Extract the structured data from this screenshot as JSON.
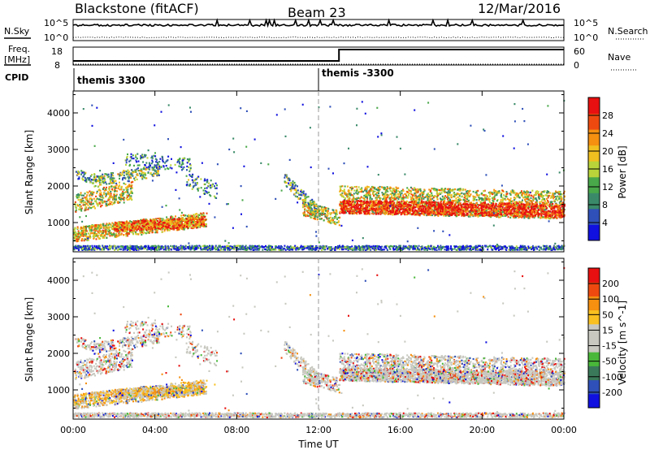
{
  "header": {
    "station": "Blackstone (fitACF)",
    "beam": "Beam 23",
    "date": "12/Mar/2016"
  },
  "side_labels": {
    "nsky": "N.Sky",
    "nsearch": "N.Search",
    "freq_line1": "Freq.",
    "freq_line2": "[MHz]",
    "nave": "Nave",
    "cpid": "CPID"
  },
  "noise_ticks": {
    "left_top": "10^5",
    "left_bottom": "10^0",
    "right_top": "10^5",
    "right_bottom": "10^0"
  },
  "freq_ticks": {
    "left_top": "18",
    "left_bottom": "8",
    "right_top": "60",
    "right_bottom": "0"
  },
  "cpid_segments": [
    {
      "label": "themis 3300",
      "start": "00:00"
    },
    {
      "label": "themis -3300",
      "start": "12:00"
    }
  ],
  "colors": {
    "power_scale": [
      "#1010e0",
      "#2f50b8",
      "#3a8a6a",
      "#49a84a",
      "#b8d43a",
      "#f0c020",
      "#f59010",
      "#ee4a10",
      "#e81010"
    ],
    "velocity_scale": [
      "#e81010",
      "#ee4a10",
      "#f59010",
      "#f8c020",
      "#c8c8c0",
      "#c8c8c0",
      "#49b83a",
      "#3a7a5a",
      "#2f50b8",
      "#1010e0"
    ]
  },
  "chart_data": [
    {
      "type": "heatmap",
      "panel": "power",
      "x_ticks": [
        "00:00",
        "04:00",
        "08:00",
        "12:00",
        "16:00",
        "20:00",
        "00:00"
      ],
      "xlim_hours": [
        0,
        24
      ],
      "ylabel": "Slant Range [km]",
      "y_ticks": [
        1000,
        2000,
        3000,
        4000
      ],
      "ylim": [
        200,
        4600
      ],
      "colorbar": {
        "label": "Power [dB]",
        "ticks": [
          4,
          8,
          12,
          16,
          20,
          24,
          28
        ]
      },
      "vertical_marker_hour": 12.0
    },
    {
      "type": "heatmap",
      "panel": "velocity",
      "x_ticks": [
        "00:00",
        "04:00",
        "08:00",
        "12:00",
        "16:00",
        "20:00",
        "00:00"
      ],
      "xlim_hours": [
        0,
        24
      ],
      "xlabel": "Time UT",
      "ylabel": "Slant Range [km]",
      "y_ticks": [
        1000,
        2000,
        3000,
        4000
      ],
      "ylim": [
        200,
        4600
      ],
      "colorbar": {
        "label": "Velocity [m s^-1]",
        "ticks": [
          200,
          100,
          50,
          15,
          -15,
          -50,
          -100,
          -200
        ]
      },
      "vertical_marker_hour": 12.0
    },
    {
      "type": "line",
      "panel": "frequency",
      "x_hours": [
        0,
        13.0,
        13.0,
        24
      ],
      "values_mhz": [
        9.5,
        9.5,
        16.5,
        16.5
      ]
    }
  ]
}
